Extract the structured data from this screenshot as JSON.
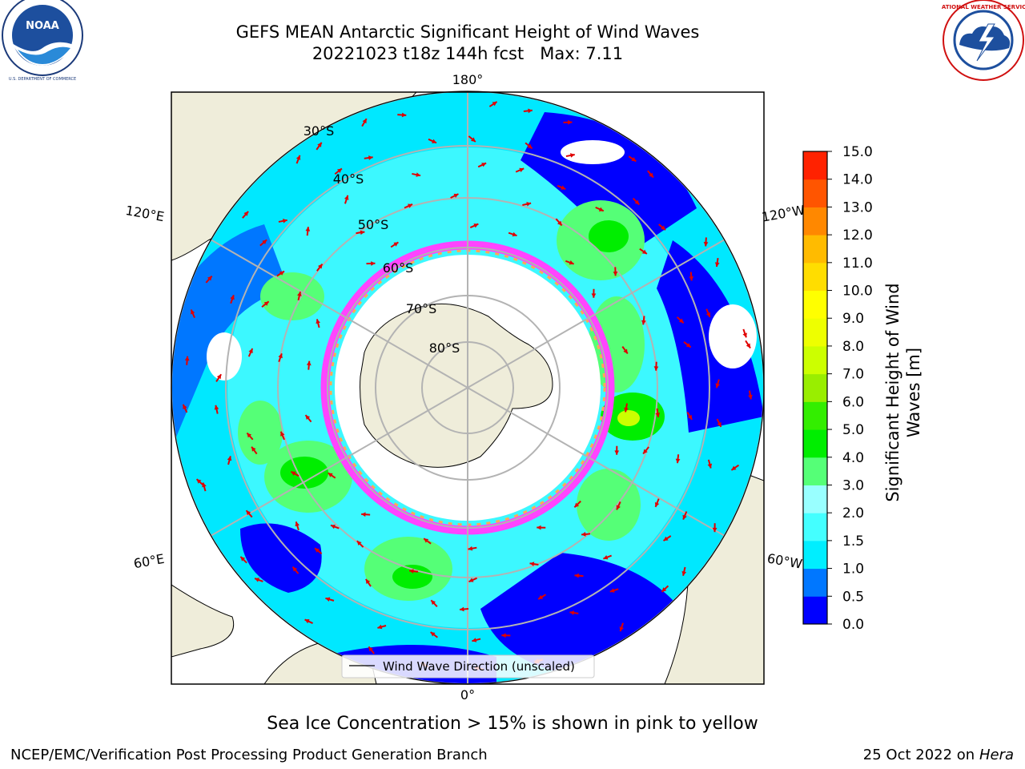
{
  "header": {
    "title_line1": "GEFS MEAN Antarctic Significant Height of Wind Waves",
    "title_line2": "20221023 t18z 144h fcst   Max: 7.11"
  },
  "logos": {
    "left": {
      "name": "NOAA",
      "text": "NOAA",
      "ring_text": "NATIONAL OCEANIC AND ATMOSPHERIC ADMINISTRATION · U.S. DEPARTMENT OF COMMERCE"
    },
    "right": {
      "name": "National Weather Service",
      "ring_text": "NATIONAL WEATHER SERVICE"
    }
  },
  "map": {
    "projection": "south-polar-stereographic",
    "lon_labels": {
      "top": "180°",
      "bottom": "0°",
      "left_upper": "120°E",
      "left_lower": "60°E",
      "right_upper": "120°W",
      "right_lower": "60°W"
    },
    "lat_labels": [
      "30°S",
      "40°S",
      "50°S",
      "60°S",
      "70°S",
      "80°S"
    ],
    "colors": {
      "land": "#efedda",
      "coast": "#000000",
      "grid": "#b3b3b3",
      "arrow": "#e00000",
      "ice_pink": "#ff44ff",
      "ice_orange": "#ffaa55"
    },
    "legend": {
      "label": "Wind Wave Direction (unscaled)"
    }
  },
  "colorbar": {
    "label_line1": "Significant Height of Wind",
    "label_line2": "Waves [m]",
    "ticks": [
      "0.0",
      "0.5",
      "1.0",
      "1.5",
      "2.0",
      "3.0",
      "4.0",
      "5.0",
      "6.0",
      "7.0",
      "8.0",
      "9.0",
      "10.0",
      "11.0",
      "12.0",
      "13.0",
      "14.0",
      "15.0"
    ],
    "colors": [
      "#0000ff",
      "#0077ff",
      "#00eeff",
      "#44ffff",
      "#99ffff",
      "#55ff77",
      "#00ee00",
      "#33ee00",
      "#99ee00",
      "#ccff00",
      "#eeff00",
      "#ffff00",
      "#ffdd00",
      "#ffbb00",
      "#ff8800",
      "#ff5500",
      "#ff2200"
    ]
  },
  "footer": {
    "note": "Sea Ice Concentration > 15% is shown in pink to yellow",
    "left": "NCEP/EMC/Verification Post Processing Product Generation Branch",
    "right_date": "25 Oct 2022 on ",
    "right_host": "Hera"
  }
}
